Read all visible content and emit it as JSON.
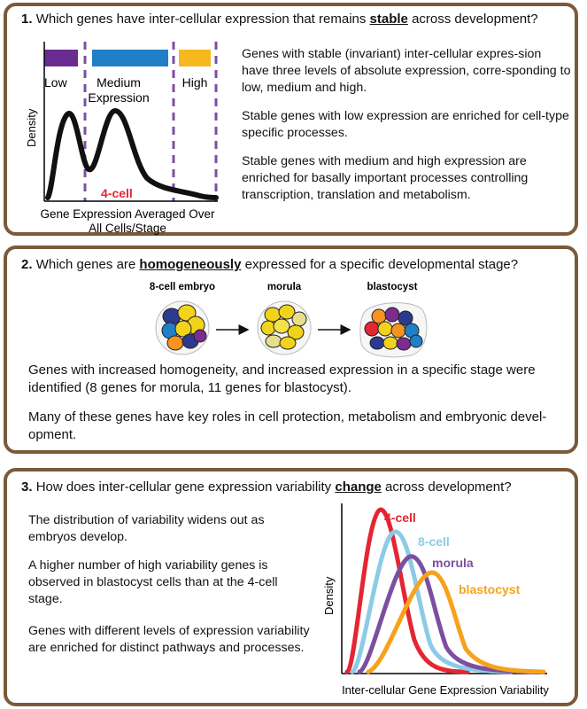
{
  "panel1": {
    "number": "1.",
    "q_pre": "Which genes have inter-cellular expression that remains ",
    "q_kw": "stable",
    "q_post": " across development?",
    "fig": {
      "low": "Low",
      "medium1": "Medium",
      "medium2": "Expression",
      "high": "High",
      "ylabel": "Density",
      "stage": "4-cell",
      "xlabel1": "Gene Expression Averaged Over",
      "xlabel2": "All Cells/Stage",
      "colors": {
        "low": "#6a2c91",
        "medium": "#1f7fc7",
        "high": "#f7b71d",
        "stage": "#e32631",
        "divider": "#7b4fa0"
      }
    },
    "paragraphs": [
      "Genes with stable (invariant) inter-cellular expres-sion have three levels of absolute expression, corre-sponding to low, medium and high.",
      "Stable genes with low expression are enriched for cell-type specific processes.",
      "Stable genes with medium and high expression are enriched for basally important processes controlling transcription, translation and metabolism."
    ]
  },
  "panel2": {
    "number": "2.",
    "q_pre": "Which genes are ",
    "q_kw": "homogeneously",
    "q_post": " expressed for a specific developmental stage?",
    "stages": [
      "8-cell embryo",
      "morula",
      "blastocyst"
    ],
    "paragraphs": [
      "Genes with increased homogeneity, and increased expression in a specific stage were identified (8 genes for morula, 11 genes for blastocyst).",
      "Many of these genes have key roles in cell protection, metabolism and embryonic devel-opment."
    ]
  },
  "panel3": {
    "number": "3.",
    "q_pre": "How does inter-cellular gene expression variability ",
    "q_kw": "change",
    "q_post": " across development?",
    "paragraphs": [
      "The distribution of variability widens out as embryos develop.",
      "A higher number of high variability genes is observed in blastocyst cells than at the 4-cell stage.",
      "Genes with different levels of expression variability are enriched for distinct pathways and processes."
    ],
    "chart": {
      "ylabel": "Density",
      "xlabel": "Inter-cellular Gene Expression Variability",
      "series": [
        {
          "name": "4-cell",
          "color": "#e32631"
        },
        {
          "name": "8-cell",
          "color": "#8ccbe8"
        },
        {
          "name": "morula",
          "color": "#7b4fa0"
        },
        {
          "name": "blastocyst",
          "color": "#f7a21b"
        }
      ]
    }
  }
}
